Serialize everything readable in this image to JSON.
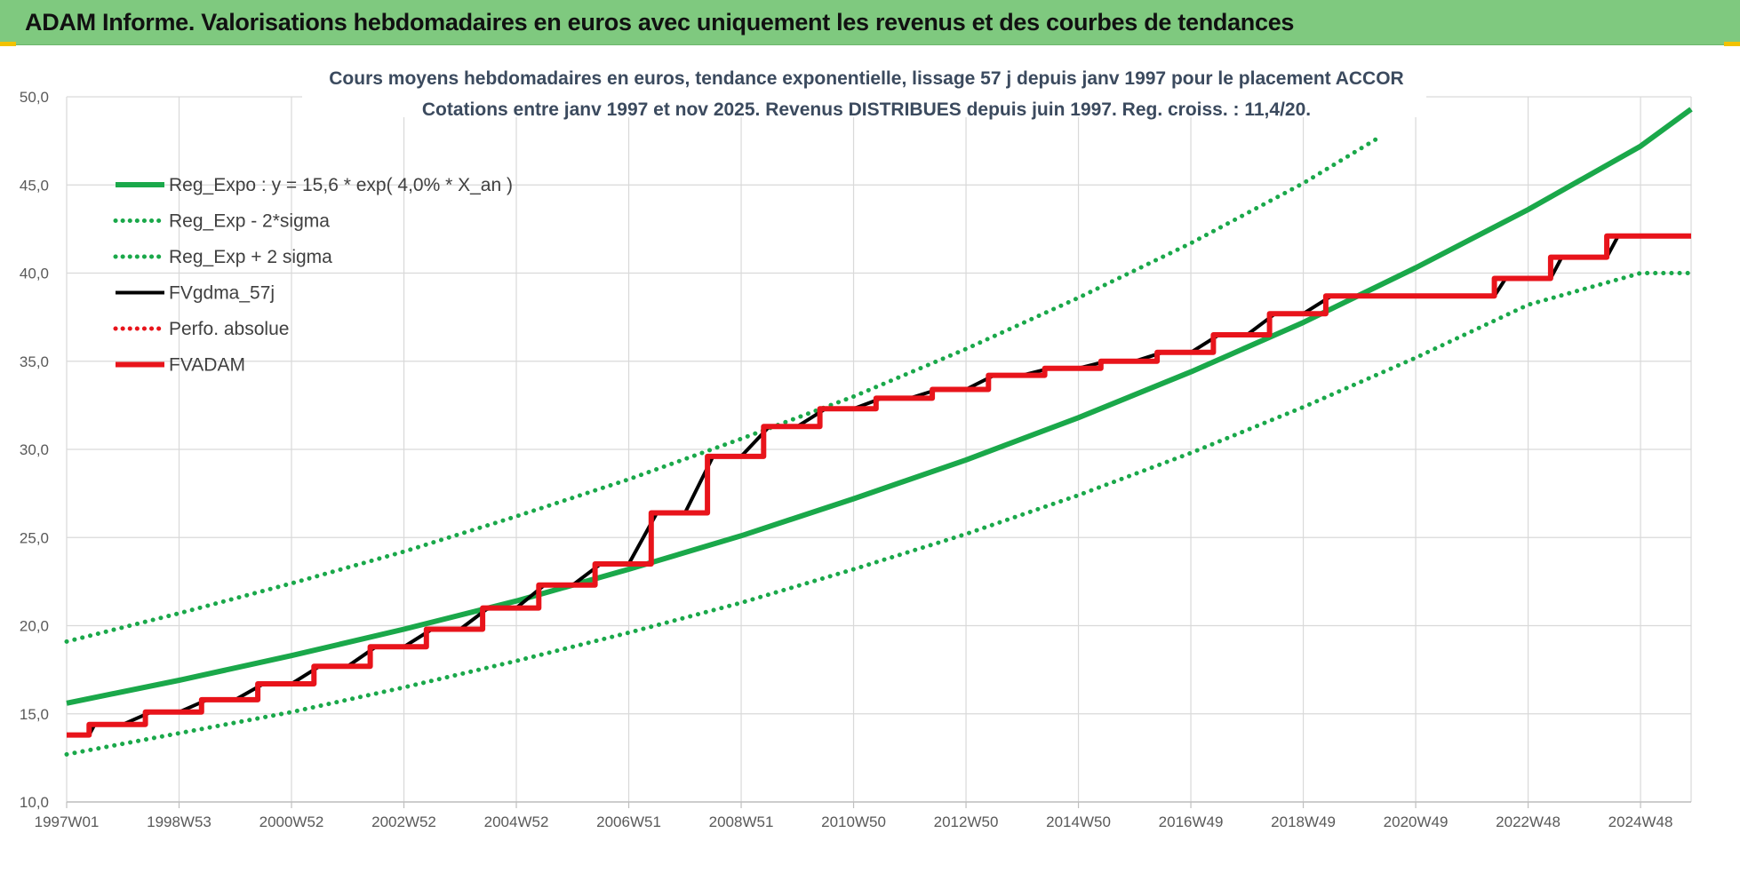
{
  "header": {
    "title": "ADAM Informe. Valorisations hebdomadaires en euros avec uniquement les revenus et des courbes de tendances"
  },
  "colors": {
    "header_bg": "#7fc97f",
    "green": "#1aa84a",
    "red": "#e8141b",
    "black": "#000000",
    "title_text": "#3b4a5e",
    "axis_text": "#595959",
    "grid": "#d9d9d9"
  },
  "chart_data": {
    "type": "line",
    "title_line1": "Cours moyens hebdomadaires en euros, tendance exponentielle, lissage 57 j depuis janv 1997  pour le placement ACCOR",
    "title_line2": "Cotations entre janv 1997 et nov 2025. Revenus DISTRIBUES depuis juin 1997. Reg. croiss. : 11,4/20.",
    "ylim": [
      10,
      50
    ],
    "yticks": [
      "10,0",
      "15,0",
      "20,0",
      "25,0",
      "30,0",
      "35,0",
      "40,0",
      "45,0",
      "50,0"
    ],
    "xlim": [
      1997.0,
      2025.9
    ],
    "xticks": [
      {
        "label": "1997W01",
        "x": 1997.0
      },
      {
        "label": "1998W53",
        "x": 1999.0
      },
      {
        "label": "2000W52",
        "x": 2001.0
      },
      {
        "label": "2002W52",
        "x": 2003.0
      },
      {
        "label": "2004W52",
        "x": 2005.0
      },
      {
        "label": "2006W51",
        "x": 2007.0
      },
      {
        "label": "2008W51",
        "x": 2009.0
      },
      {
        "label": "2010W50",
        "x": 2011.0
      },
      {
        "label": "2012W50",
        "x": 2013.0
      },
      {
        "label": "2014W50",
        "x": 2015.0
      },
      {
        "label": "2016W49",
        "x": 2017.0
      },
      {
        "label": "2018W49",
        "x": 2019.0
      },
      {
        "label": "2020W49",
        "x": 2021.0
      },
      {
        "label": "2022W48",
        "x": 2023.0
      },
      {
        "label": "2024W48",
        "x": 2025.0
      }
    ],
    "grid": true,
    "legend_position": "top-left",
    "series": [
      {
        "name": "Reg_Expo : y = 15,6 * exp( 4,0% *  X_an )",
        "style": "solid-thick",
        "color": "#1aa84a",
        "x": [
          1997.0,
          1999.0,
          2001.0,
          2003.0,
          2005.0,
          2007.0,
          2009.0,
          2011.0,
          2013.0,
          2015.0,
          2017.0,
          2019.0,
          2021.0,
          2023.0,
          2025.0,
          2025.9
        ],
        "y": [
          15.6,
          16.9,
          18.3,
          19.8,
          21.4,
          23.2,
          25.1,
          27.2,
          29.4,
          31.8,
          34.4,
          37.2,
          40.3,
          43.6,
          47.2,
          49.3
        ]
      },
      {
        "name": "Reg_Exp - 2*sigma",
        "style": "dotted",
        "color": "#1aa84a",
        "x": [
          1997.0,
          1999.0,
          2001.0,
          2003.0,
          2005.0,
          2007.0,
          2009.0,
          2011.0,
          2013.0,
          2015.0,
          2017.0,
          2019.0,
          2021.0,
          2023.0,
          2025.0,
          2025.9
        ],
        "y": [
          12.7,
          13.9,
          15.1,
          16.5,
          18.0,
          19.6,
          21.3,
          23.2,
          25.2,
          27.4,
          29.8,
          32.4,
          35.2,
          38.2,
          40.0,
          40.0
        ]
      },
      {
        "name": "Reg_Exp + 2 sigma",
        "style": "dotted",
        "color": "#1aa84a",
        "x": [
          1997.0,
          1999.0,
          2001.0,
          2003.0,
          2005.0,
          2007.0,
          2009.0,
          2011.0,
          2013.0,
          2015.0,
          2017.0,
          2019.0,
          2020.3
        ],
        "y": [
          19.1,
          20.7,
          22.4,
          24.2,
          26.2,
          28.3,
          30.6,
          33.0,
          35.7,
          38.6,
          41.7,
          45.1,
          47.6
        ]
      },
      {
        "name": "FVgdma_57j",
        "style": "solid",
        "color": "#000000",
        "x": [
          1997.0,
          1997.4,
          1997.5,
          1998.0,
          1998.5,
          1999.0,
          1999.5,
          2000.0,
          2000.5,
          2001.0,
          2001.5,
          2002.0,
          2002.5,
          2003.0,
          2003.5,
          2004.0,
          2004.5,
          2005.0,
          2005.5,
          2006.0,
          2006.5,
          2007.0,
          2007.5,
          2008.0,
          2008.5,
          2009.0,
          2009.5,
          2010.0,
          2010.5,
          2011.0,
          2011.5,
          2012.0,
          2012.5,
          2013.0,
          2013.5,
          2014.0,
          2014.5,
          2015.0,
          2015.5,
          2016.0,
          2016.5,
          2017.0,
          2017.5,
          2018.0,
          2018.5,
          2019.0,
          2019.5,
          2020.0,
          2022.4,
          2022.6,
          2023.4,
          2023.6,
          2024.4,
          2024.6,
          2025.9
        ],
        "y": [
          13.8,
          13.8,
          14.4,
          14.4,
          15.1,
          15.1,
          15.8,
          15.8,
          16.7,
          16.7,
          17.7,
          17.7,
          18.8,
          18.8,
          19.8,
          19.8,
          21.0,
          21.0,
          22.3,
          22.3,
          23.5,
          23.5,
          26.4,
          26.4,
          29.6,
          29.6,
          31.3,
          31.3,
          32.3,
          32.3,
          32.9,
          32.9,
          33.4,
          33.4,
          34.2,
          34.2,
          34.6,
          34.6,
          35.0,
          35.0,
          35.5,
          35.5,
          36.5,
          36.5,
          37.7,
          37.7,
          38.7,
          38.7,
          38.7,
          39.7,
          39.7,
          40.9,
          40.9,
          42.1,
          42.1
        ]
      },
      {
        "name": "Perfo. absolue",
        "style": "dotted",
        "color": "#e8141b",
        "x": [],
        "y": []
      },
      {
        "name": "FVADAM",
        "style": "solid-thick",
        "color": "#e8141b",
        "x": [
          1997.0,
          1997.4,
          1997.4,
          1998.4,
          1998.4,
          1999.4,
          1999.4,
          2000.4,
          2000.4,
          2001.4,
          2001.4,
          2002.4,
          2002.4,
          2003.4,
          2003.4,
          2004.4,
          2004.4,
          2005.4,
          2005.4,
          2006.4,
          2006.4,
          2007.4,
          2007.4,
          2008.4,
          2008.4,
          2009.4,
          2009.4,
          2010.4,
          2010.4,
          2011.4,
          2011.4,
          2012.4,
          2012.4,
          2013.4,
          2013.4,
          2014.4,
          2014.4,
          2015.4,
          2015.4,
          2016.4,
          2016.4,
          2017.4,
          2017.4,
          2018.4,
          2018.4,
          2019.4,
          2019.4,
          2022.4,
          2022.4,
          2023.4,
          2023.4,
          2024.4,
          2024.4,
          2025.9
        ],
        "y": [
          13.8,
          13.8,
          14.4,
          14.4,
          15.1,
          15.1,
          15.8,
          15.8,
          16.7,
          16.7,
          17.7,
          17.7,
          18.8,
          18.8,
          19.8,
          19.8,
          21.0,
          21.0,
          22.3,
          22.3,
          23.5,
          23.5,
          26.4,
          26.4,
          29.6,
          29.6,
          31.3,
          31.3,
          32.3,
          32.3,
          32.9,
          32.9,
          33.4,
          33.4,
          34.2,
          34.2,
          34.6,
          34.6,
          35.0,
          35.0,
          35.5,
          35.5,
          36.5,
          36.5,
          37.7,
          37.7,
          38.7,
          38.7,
          39.7,
          39.7,
          40.9,
          40.9,
          42.1,
          42.1
        ]
      }
    ]
  }
}
